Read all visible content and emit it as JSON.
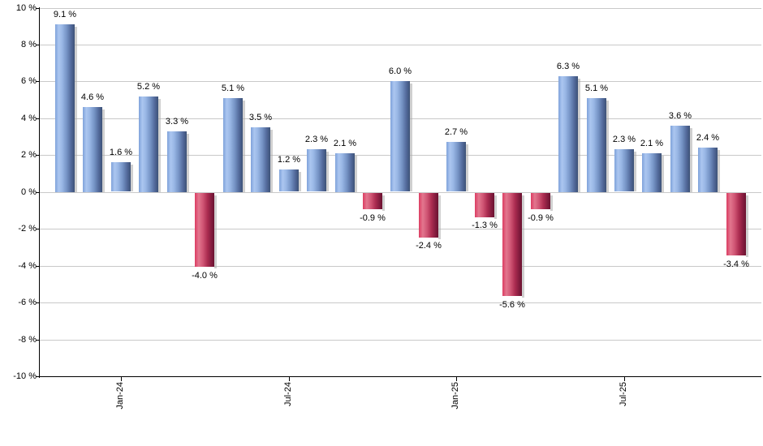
{
  "chart_data": {
    "type": "bar",
    "title": "",
    "xlabel": "",
    "ylabel": "",
    "values": [
      9.1,
      4.6,
      1.6,
      5.2,
      3.3,
      -4.0,
      5.1,
      3.5,
      1.2,
      2.3,
      2.1,
      -0.9,
      6.0,
      -2.4,
      2.7,
      -1.3,
      -5.6,
      -0.9,
      6.3,
      5.1,
      2.3,
      2.1,
      3.6,
      2.4,
      -3.4
    ],
    "bar_labels": [
      "9.1 %",
      "4.6 %",
      "1.6 %",
      "5.2 %",
      "3.3 %",
      "-4.0 %",
      "5.1 %",
      "3.5 %",
      "1.2 %",
      "2.3 %",
      "2.1 %",
      "-0.9 %",
      "6.0 %",
      "-2.4 %",
      "2.7 %",
      "-1.3 %",
      "-5.6 %",
      "-0.9 %",
      "6.3 %",
      "5.1 %",
      "2.3 %",
      "2.1 %",
      "3.6 %",
      "2.4 %",
      "-3.4 %"
    ],
    "y_ticks": [
      10,
      8,
      6,
      4,
      2,
      0,
      -2,
      -4,
      -6,
      -8,
      -10
    ],
    "y_tick_labels": [
      "10 %",
      "8 %",
      "6 %",
      "4 %",
      "2 %",
      "0 %",
      "-2 %",
      "-4 %",
      "-6 %",
      "-8 %",
      "-10 %"
    ],
    "x_ticks": [
      {
        "bar_index": 2,
        "label": "Jan-24"
      },
      {
        "bar_index": 8,
        "label": "Jul-24"
      },
      {
        "bar_index": 14,
        "label": "Jan-25"
      },
      {
        "bar_index": 20,
        "label": "Jul-25"
      }
    ],
    "ylim": [
      -10,
      10
    ],
    "grid": true,
    "legend": "none",
    "colors": {
      "positive_bar": "#7fa2da",
      "negative_bar": "#dc3c62",
      "gridline": "#c9c9c9",
      "axis": "#000000",
      "label_text": "#000000",
      "background": "#ffffff"
    }
  }
}
